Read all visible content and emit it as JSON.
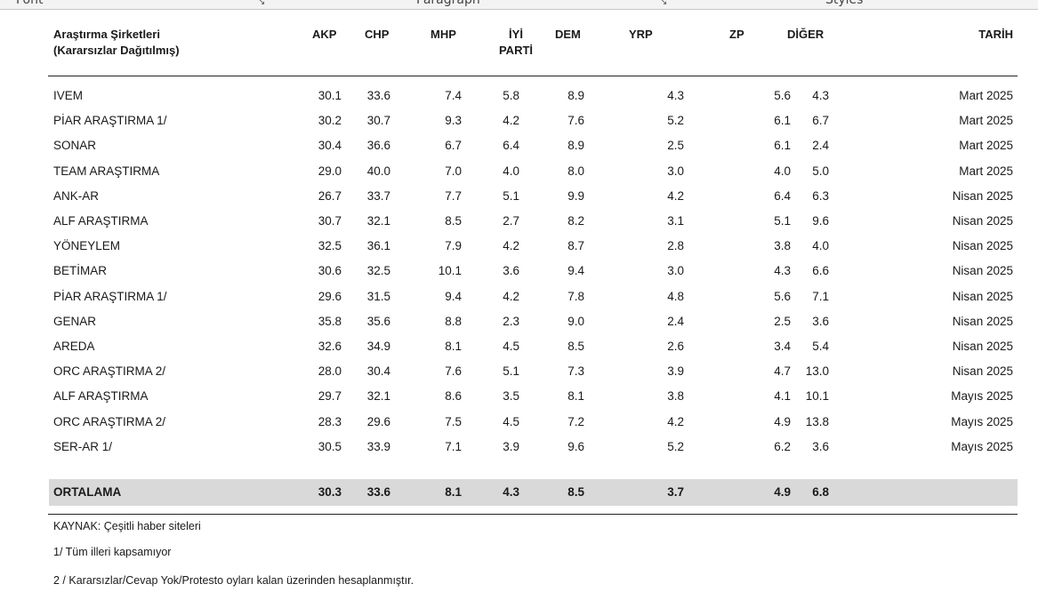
{
  "ribbon": {
    "groups": [
      "Font",
      "Paragraph",
      "Styles"
    ]
  },
  "table": {
    "header": {
      "company_line1": "Araştırma Şirketleri",
      "company_line2": "(Kararsızlar Dağıtılmış)",
      "akp": "AKP",
      "chp": "CHP",
      "mhp": "MHP",
      "iyi_line1": "İYİ",
      "iyi_line2": "PARTİ",
      "dem": "DEM",
      "yrp": "YRP",
      "zp": "ZP",
      "diger": "DİĞER",
      "tarih": "TARİH"
    },
    "rows": [
      {
        "name": "IVEM",
        "akp": "30.1",
        "chp": "33.6",
        "mhp": "7.4",
        "iyi": "5.8",
        "dem": "8.9",
        "yrp": "4.3",
        "zp": "5.6",
        "diger": "4.3",
        "tarih": "Mart 2025"
      },
      {
        "name": "PİAR ARAŞTIRMA 1/",
        "akp": "30.2",
        "chp": "30.7",
        "mhp": "9.3",
        "iyi": "4.2",
        "dem": "7.6",
        "yrp": "5.2",
        "zp": "6.1",
        "diger": "6.7",
        "tarih": "Mart 2025"
      },
      {
        "name": "SONAR",
        "akp": "30.4",
        "chp": "36.6",
        "mhp": "6.7",
        "iyi": "6.4",
        "dem": "8.9",
        "yrp": "2.5",
        "zp": "6.1",
        "diger": "2.4",
        "tarih": "Mart 2025"
      },
      {
        "name": "TEAM ARAŞTIRMA",
        "akp": "29.0",
        "chp": "40.0",
        "mhp": "7.0",
        "iyi": "4.0",
        "dem": "8.0",
        "yrp": "3.0",
        "zp": "4.0",
        "diger": "5.0",
        "tarih": "Mart 2025"
      },
      {
        "name": "ANK-AR",
        "akp": "26.7",
        "chp": "33.7",
        "mhp": "7.7",
        "iyi": "5.1",
        "dem": "9.9",
        "yrp": "4.2",
        "zp": "6.4",
        "diger": "6.3",
        "tarih": "Nisan 2025"
      },
      {
        "name": "ALF ARAŞTIRMA",
        "akp": "30.7",
        "chp": "32.1",
        "mhp": "8.5",
        "iyi": "2.7",
        "dem": "8.2",
        "yrp": "3.1",
        "zp": "5.1",
        "diger": "9.6",
        "tarih": "Nisan 2025"
      },
      {
        "name": "YÖNEYLEM",
        "akp": "32.5",
        "chp": "36.1",
        "mhp": "7.9",
        "iyi": "4.2",
        "dem": "8.7",
        "yrp": "2.8",
        "zp": "3.8",
        "diger": "4.0",
        "tarih": "Nisan 2025"
      },
      {
        "name": "BETİMAR",
        "akp": "30.6",
        "chp": "32.5",
        "mhp": "10.1",
        "iyi": "3.6",
        "dem": "9.4",
        "yrp": "3.0",
        "zp": "4.3",
        "diger": "6.6",
        "tarih": "Nisan 2025"
      },
      {
        "name": "PİAR ARAŞTIRMA 1/",
        "akp": "29.6",
        "chp": "31.5",
        "mhp": "9.4",
        "iyi": "4.2",
        "dem": "7.8",
        "yrp": "4.8",
        "zp": "5.6",
        "diger": "7.1",
        "tarih": "Nisan 2025"
      },
      {
        "name": "GENAR",
        "akp": "35.8",
        "chp": "35.6",
        "mhp": "8.8",
        "iyi": "2.3",
        "dem": "9.0",
        "yrp": "2.4",
        "zp": "2.5",
        "diger": "3.6",
        "tarih": "Nisan 2025"
      },
      {
        "name": "AREDA",
        "akp": "32.6",
        "chp": "34.9",
        "mhp": "8.1",
        "iyi": "4.5",
        "dem": "8.5",
        "yrp": "2.6",
        "zp": "3.4",
        "diger": "5.4",
        "tarih": "Nisan 2025"
      },
      {
        "name": "ORC ARAŞTIRMA 2/",
        "akp": "28.0",
        "chp": "30.4",
        "mhp": "7.6",
        "iyi": "5.1",
        "dem": "7.3",
        "yrp": "3.9",
        "zp": "4.7",
        "diger": "13.0",
        "tarih": "Nisan 2025"
      },
      {
        "name": "ALF ARAŞTIRMA",
        "akp": "29.7",
        "chp": "32.1",
        "mhp": "8.6",
        "iyi": "3.5",
        "dem": "8.1",
        "yrp": "3.8",
        "zp": "4.1",
        "diger": "10.1",
        "tarih": "Mayıs 2025"
      },
      {
        "name": "ORC ARAŞTIRMA 2/",
        "akp": "28.3",
        "chp": "29.6",
        "mhp": "7.5",
        "iyi": "4.5",
        "dem": "7.2",
        "yrp": "4.2",
        "zp": "4.9",
        "diger": "13.8",
        "tarih": "Mayıs 2025"
      },
      {
        "name": "SER-AR 1/",
        "akp": "30.5",
        "chp": "33.9",
        "mhp": "7.1",
        "iyi": "3.9",
        "dem": "9.6",
        "yrp": "5.2",
        "zp": "6.2",
        "diger": "3.6",
        "tarih": "Mayıs 2025"
      }
    ],
    "average": {
      "name": "ORTALAMA",
      "akp": "30.3",
      "chp": "33.6",
      "mhp": "8.1",
      "iyi": "4.3",
      "dem": "8.5",
      "yrp": "3.7",
      "zp": "4.9",
      "diger": "6.8",
      "tarih": ""
    }
  },
  "notes": [
    "KAYNAK: Çeşitli haber siteleri",
    "1/ Tüm illeri kapsamıyor",
    "2 / Kararsızlar/Cevap Yok/Protesto oyları kalan üzerinden hesaplanmıştır."
  ]
}
